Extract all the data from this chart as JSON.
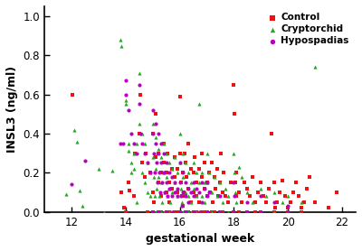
{
  "xlabel": "gestational week",
  "ylabel": "INSL3 (ng/ml)",
  "xlim": [
    11.0,
    22.5
  ],
  "ylim": [
    0.0,
    1.05
  ],
  "xticks": [
    12,
    14,
    16,
    18,
    20,
    22
  ],
  "yticks": [
    0.0,
    0.2,
    0.4,
    0.6,
    0.8,
    1.0
  ],
  "bg_color": "#ffffff",
  "control_color": "#ee1111",
  "cryptorchid_color": "#22aa22",
  "hypospadias_color": "#bb00bb",
  "marker_size": 9,
  "control_data": [
    [
      12.05,
      0.6
    ],
    [
      13.85,
      0.1
    ],
    [
      13.95,
      0.02
    ],
    [
      14.0,
      0.0
    ],
    [
      14.1,
      0.15
    ],
    [
      14.15,
      0.11
    ],
    [
      14.3,
      0.08
    ],
    [
      14.35,
      0.3
    ],
    [
      14.5,
      0.4
    ],
    [
      14.55,
      0.6
    ],
    [
      14.6,
      0.25
    ],
    [
      14.7,
      0.18
    ],
    [
      14.75,
      0.3
    ],
    [
      14.9,
      0.2
    ],
    [
      15.0,
      0.4
    ],
    [
      15.02,
      0.1
    ],
    [
      15.05,
      0.05
    ],
    [
      15.1,
      0.5
    ],
    [
      15.12,
      0.28
    ],
    [
      15.2,
      0.3
    ],
    [
      15.22,
      0.15
    ],
    [
      15.3,
      0.2
    ],
    [
      15.32,
      0.08
    ],
    [
      15.4,
      0.25
    ],
    [
      15.42,
      0.35
    ],
    [
      15.5,
      0.2
    ],
    [
      15.52,
      0.1
    ],
    [
      15.55,
      0.3
    ],
    [
      15.6,
      0.15
    ],
    [
      15.62,
      0.05
    ],
    [
      15.7,
      0.22
    ],
    [
      15.72,
      0.12
    ],
    [
      15.8,
      0.18
    ],
    [
      15.82,
      0.28
    ],
    [
      15.9,
      0.1
    ],
    [
      15.92,
      0.22
    ],
    [
      16.0,
      0.59
    ],
    [
      16.02,
      0.3
    ],
    [
      16.05,
      0.15
    ],
    [
      16.08,
      0.08
    ],
    [
      16.1,
      0.03
    ],
    [
      16.12,
      0.2
    ],
    [
      16.15,
      0.1
    ],
    [
      16.18,
      0.3
    ],
    [
      16.2,
      0.25
    ],
    [
      16.22,
      0.08
    ],
    [
      16.25,
      0.18
    ],
    [
      16.3,
      0.12
    ],
    [
      16.32,
      0.35
    ],
    [
      16.4,
      0.22
    ],
    [
      16.42,
      0.05
    ],
    [
      16.5,
      0.2
    ],
    [
      16.52,
      0.1
    ],
    [
      16.55,
      0.28
    ],
    [
      16.6,
      0.15
    ],
    [
      16.62,
      0.08
    ],
    [
      16.7,
      0.22
    ],
    [
      16.72,
      0.05
    ],
    [
      16.8,
      0.18
    ],
    [
      16.82,
      0.3
    ],
    [
      16.9,
      0.12
    ],
    [
      16.92,
      0.25
    ],
    [
      17.0,
      0.15
    ],
    [
      17.02,
      0.08
    ],
    [
      17.1,
      0.2
    ],
    [
      17.12,
      0.1
    ],
    [
      17.2,
      0.25
    ],
    [
      17.22,
      0.05
    ],
    [
      17.3,
      0.18
    ],
    [
      17.32,
      0.12
    ],
    [
      17.4,
      0.22
    ],
    [
      17.42,
      0.08
    ],
    [
      17.5,
      0.15
    ],
    [
      17.52,
      0.3
    ],
    [
      17.6,
      0.1
    ],
    [
      17.62,
      0.2
    ],
    [
      17.7,
      0.08
    ],
    [
      17.8,
      0.05
    ],
    [
      17.9,
      0.15
    ],
    [
      18.0,
      0.65
    ],
    [
      18.02,
      0.5
    ],
    [
      18.05,
      0.15
    ],
    [
      18.08,
      0.08
    ],
    [
      18.1,
      0.2
    ],
    [
      18.2,
      0.1
    ],
    [
      18.3,
      0.05
    ],
    [
      18.4,
      0.15
    ],
    [
      18.5,
      0.12
    ],
    [
      18.6,
      0.08
    ],
    [
      18.7,
      0.18
    ],
    [
      18.8,
      0.05
    ],
    [
      18.9,
      0.1
    ],
    [
      19.0,
      0.15
    ],
    [
      19.1,
      0.08
    ],
    [
      19.2,
      0.05
    ],
    [
      19.3,
      0.12
    ],
    [
      19.4,
      0.4
    ],
    [
      19.5,
      0.15
    ],
    [
      19.52,
      0.02
    ],
    [
      19.6,
      0.05
    ],
    [
      19.7,
      0.1
    ],
    [
      19.8,
      0.16
    ],
    [
      19.9,
      0.08
    ],
    [
      20.0,
      0.02
    ],
    [
      20.1,
      0.05
    ],
    [
      20.2,
      0.1
    ],
    [
      20.3,
      0.15
    ],
    [
      20.4,
      0.08
    ],
    [
      20.5,
      0.02
    ],
    [
      20.6,
      0.05
    ],
    [
      20.7,
      0.12
    ],
    [
      20.8,
      0.18
    ],
    [
      21.0,
      0.05
    ],
    [
      21.5,
      0.02
    ],
    [
      21.8,
      0.1
    ],
    [
      14.8,
      0.0
    ],
    [
      15.0,
      0.0
    ],
    [
      15.2,
      0.0
    ],
    [
      15.5,
      0.0
    ],
    [
      15.8,
      0.0
    ],
    [
      16.0,
      0.0
    ],
    [
      16.2,
      0.0
    ],
    [
      16.5,
      0.0
    ],
    [
      16.8,
      0.0
    ],
    [
      17.0,
      0.0
    ],
    [
      17.2,
      0.0
    ],
    [
      17.5,
      0.0
    ],
    [
      18.0,
      0.0
    ],
    [
      18.5,
      0.0
    ],
    [
      19.0,
      0.0
    ],
    [
      20.0,
      0.0
    ],
    [
      15.3,
      0.0
    ],
    [
      15.6,
      0.0
    ],
    [
      15.9,
      0.0
    ],
    [
      16.3,
      0.0
    ],
    [
      16.6,
      0.0
    ],
    [
      16.9,
      0.0
    ],
    [
      17.3,
      0.0
    ],
    [
      17.6,
      0.0
    ],
    [
      18.2,
      0.0
    ],
    [
      18.8,
      0.0
    ],
    [
      19.5,
      0.0
    ],
    [
      20.5,
      0.0
    ]
  ],
  "cryptorchid_data": [
    [
      11.8,
      0.09
    ],
    [
      12.1,
      0.42
    ],
    [
      12.2,
      0.36
    ],
    [
      12.3,
      0.11
    ],
    [
      12.4,
      0.03
    ],
    [
      13.0,
      0.22
    ],
    [
      13.2,
      0.0
    ],
    [
      13.5,
      0.21
    ],
    [
      13.8,
      0.88
    ],
    [
      13.85,
      0.845
    ],
    [
      14.0,
      0.57
    ],
    [
      14.02,
      0.55
    ],
    [
      14.1,
      0.35
    ],
    [
      14.12,
      0.31
    ],
    [
      14.2,
      0.25
    ],
    [
      14.22,
      0.2
    ],
    [
      14.3,
      0.3
    ],
    [
      14.32,
      0.22
    ],
    [
      14.4,
      0.35
    ],
    [
      14.42,
      0.05
    ],
    [
      14.5,
      0.71
    ],
    [
      14.52,
      0.45
    ],
    [
      14.6,
      0.4
    ],
    [
      14.62,
      0.2
    ],
    [
      14.7,
      0.35
    ],
    [
      14.72,
      0.15
    ],
    [
      14.8,
      0.25
    ],
    [
      14.82,
      0.1
    ],
    [
      14.9,
      0.2
    ],
    [
      14.92,
      0.08
    ],
    [
      15.0,
      0.45
    ],
    [
      15.02,
      0.28
    ],
    [
      15.05,
      0.18
    ],
    [
      15.08,
      0.08
    ],
    [
      15.1,
      0.38
    ],
    [
      15.12,
      0.22
    ],
    [
      15.15,
      0.12
    ],
    [
      15.2,
      0.32
    ],
    [
      15.22,
      0.18
    ],
    [
      15.25,
      0.08
    ],
    [
      15.3,
      0.28
    ],
    [
      15.32,
      0.15
    ],
    [
      15.35,
      0.05
    ],
    [
      15.4,
      0.35
    ],
    [
      15.42,
      0.2
    ],
    [
      15.45,
      0.1
    ],
    [
      15.5,
      0.3
    ],
    [
      15.52,
      0.18
    ],
    [
      15.55,
      0.08
    ],
    [
      15.6,
      0.25
    ],
    [
      15.62,
      0.12
    ],
    [
      15.65,
      0.05
    ],
    [
      15.7,
      0.22
    ],
    [
      15.72,
      0.1
    ],
    [
      15.8,
      0.28
    ],
    [
      15.82,
      0.15
    ],
    [
      15.9,
      0.2
    ],
    [
      15.92,
      0.08
    ],
    [
      16.0,
      0.4
    ],
    [
      16.02,
      0.25
    ],
    [
      16.05,
      0.12
    ],
    [
      16.08,
      0.05
    ],
    [
      16.1,
      0.3
    ],
    [
      16.12,
      0.18
    ],
    [
      16.2,
      0.25
    ],
    [
      16.22,
      0.1
    ],
    [
      16.3,
      0.2
    ],
    [
      16.32,
      0.08
    ],
    [
      16.4,
      0.15
    ],
    [
      16.42,
      0.05
    ],
    [
      16.5,
      0.25
    ],
    [
      16.52,
      0.12
    ],
    [
      16.6,
      0.2
    ],
    [
      16.62,
      0.08
    ],
    [
      16.7,
      0.55
    ],
    [
      16.72,
      0.15
    ],
    [
      16.8,
      0.2
    ],
    [
      16.82,
      0.08
    ],
    [
      16.9,
      0.15
    ],
    [
      16.92,
      0.05
    ],
    [
      17.0,
      0.3
    ],
    [
      17.02,
      0.15
    ],
    [
      17.1,
      0.2
    ],
    [
      17.2,
      0.1
    ],
    [
      17.3,
      0.18
    ],
    [
      17.4,
      0.08
    ],
    [
      17.5,
      0.15
    ],
    [
      17.6,
      0.05
    ],
    [
      17.7,
      0.12
    ],
    [
      17.8,
      0.08
    ],
    [
      18.0,
      0.3
    ],
    [
      18.02,
      0.2
    ],
    [
      18.05,
      0.1
    ],
    [
      18.08,
      0.05
    ],
    [
      18.2,
      0.23
    ],
    [
      18.3,
      0.18
    ],
    [
      18.5,
      0.1
    ],
    [
      18.7,
      0.05
    ],
    [
      19.0,
      0.12
    ],
    [
      19.2,
      0.08
    ],
    [
      19.5,
      0.1
    ],
    [
      19.8,
      0.05
    ],
    [
      20.0,
      0.08
    ],
    [
      20.5,
      0.05
    ],
    [
      21.0,
      0.74
    ],
    [
      15.0,
      0.0
    ],
    [
      15.3,
      0.0
    ],
    [
      15.6,
      0.0
    ],
    [
      16.0,
      0.0
    ],
    [
      16.3,
      0.0
    ],
    [
      16.6,
      0.0
    ],
    [
      17.0,
      0.0
    ],
    [
      17.5,
      0.0
    ],
    [
      18.0,
      0.0
    ],
    [
      19.0,
      0.0
    ],
    [
      20.0,
      0.0
    ],
    [
      15.1,
      0.0
    ],
    [
      15.4,
      0.0
    ],
    [
      15.7,
      0.0
    ],
    [
      16.1,
      0.0
    ],
    [
      16.4,
      0.0
    ],
    [
      16.7,
      0.0
    ],
    [
      17.2,
      0.0
    ],
    [
      17.8,
      0.0
    ],
    [
      18.5,
      0.0
    ],
    [
      19.5,
      0.0
    ]
  ],
  "hypospadias_data": [
    [
      12.0,
      0.14
    ],
    [
      12.5,
      0.26
    ],
    [
      13.8,
      0.35
    ],
    [
      13.9,
      0.35
    ],
    [
      14.0,
      0.67
    ],
    [
      14.02,
      0.6
    ],
    [
      14.1,
      0.52
    ],
    [
      14.2,
      0.4
    ],
    [
      14.3,
      0.35
    ],
    [
      14.4,
      0.3
    ],
    [
      14.5,
      0.65
    ],
    [
      14.52,
      0.55
    ],
    [
      14.55,
      0.4
    ],
    [
      14.6,
      0.35
    ],
    [
      14.7,
      0.3
    ],
    [
      14.8,
      0.25
    ],
    [
      14.9,
      0.2
    ],
    [
      15.0,
      0.52
    ],
    [
      15.02,
      0.4
    ],
    [
      15.05,
      0.3
    ],
    [
      15.08,
      0.2
    ],
    [
      15.1,
      0.45
    ],
    [
      15.12,
      0.35
    ],
    [
      15.15,
      0.25
    ],
    [
      15.18,
      0.15
    ],
    [
      15.2,
      0.4
    ],
    [
      15.22,
      0.3
    ],
    [
      15.25,
      0.2
    ],
    [
      15.28,
      0.1
    ],
    [
      15.3,
      0.35
    ],
    [
      15.32,
      0.25
    ],
    [
      15.35,
      0.15
    ],
    [
      15.4,
      0.3
    ],
    [
      15.42,
      0.2
    ],
    [
      15.45,
      0.1
    ],
    [
      15.5,
      0.25
    ],
    [
      15.52,
      0.15
    ],
    [
      15.55,
      0.08
    ],
    [
      15.6,
      0.2
    ],
    [
      15.62,
      0.12
    ],
    [
      15.7,
      0.18
    ],
    [
      15.72,
      0.08
    ],
    [
      15.8,
      0.15
    ],
    [
      15.82,
      0.1
    ],
    [
      15.9,
      0.12
    ],
    [
      15.92,
      0.08
    ],
    [
      16.0,
      0.25
    ],
    [
      16.02,
      0.15
    ],
    [
      16.05,
      0.08
    ],
    [
      16.08,
      0.03
    ],
    [
      16.1,
      0.2
    ],
    [
      16.12,
      0.1
    ],
    [
      16.2,
      0.15
    ],
    [
      16.22,
      0.08
    ],
    [
      16.3,
      0.12
    ],
    [
      16.32,
      0.05
    ],
    [
      16.4,
      0.1
    ],
    [
      16.5,
      0.15
    ],
    [
      16.52,
      0.08
    ],
    [
      16.6,
      0.12
    ],
    [
      16.7,
      0.1
    ],
    [
      16.8,
      0.15
    ],
    [
      16.82,
      0.05
    ],
    [
      16.9,
      0.12
    ],
    [
      17.0,
      0.15
    ],
    [
      17.02,
      0.08
    ],
    [
      17.1,
      0.1
    ],
    [
      17.5,
      0.08
    ],
    [
      18.0,
      0.15
    ],
    [
      18.02,
      0.08
    ],
    [
      18.5,
      0.05
    ],
    [
      19.0,
      0.08
    ],
    [
      19.5,
      0.05
    ],
    [
      20.0,
      0.03
    ],
    [
      15.0,
      0.0
    ],
    [
      15.5,
      0.0
    ],
    [
      16.0,
      0.0
    ],
    [
      16.5,
      0.0
    ],
    [
      17.0,
      0.0
    ],
    [
      18.0,
      0.0
    ],
    [
      19.0,
      0.0
    ],
    [
      20.0,
      0.0
    ],
    [
      15.2,
      0.0
    ],
    [
      15.7,
      0.0
    ],
    [
      16.2,
      0.0
    ],
    [
      16.7,
      0.0
    ],
    [
      17.5,
      0.0
    ],
    [
      18.5,
      0.0
    ]
  ]
}
